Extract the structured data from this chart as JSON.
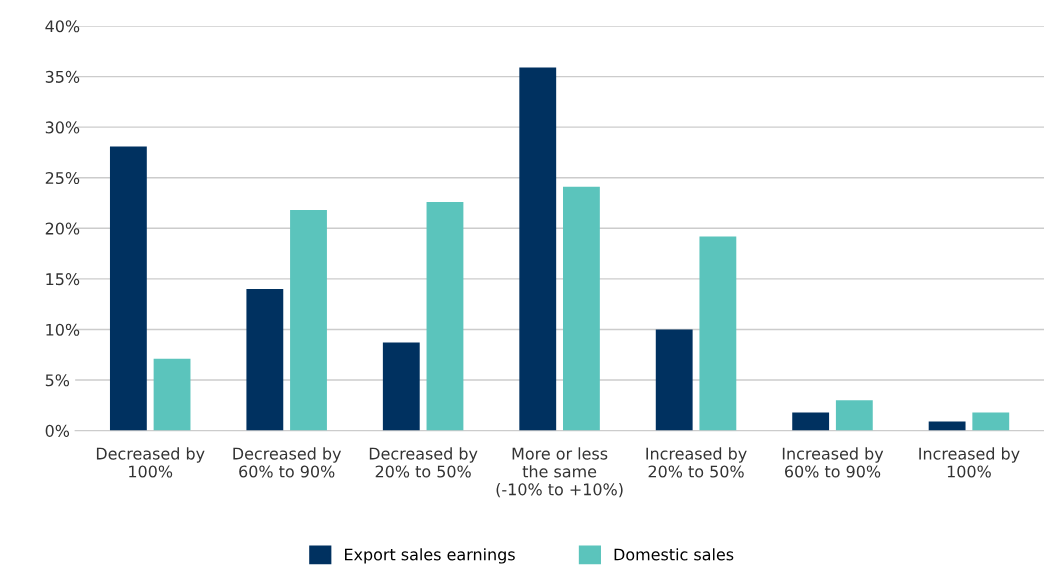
{
  "chart_data": {
    "type": "bar",
    "categories": [
      "Decreased by\n100%",
      "Decreased by\n60% to 90%",
      "Decreased by\n20% to 50%",
      "More or less\nthe same\n(-10% to +10%)",
      "Increased by\n20% to 50%",
      "Increased by\n60% to 90%",
      "Increased by\n100%"
    ],
    "series": [
      {
        "name": "Export sales earnings",
        "color": "#003160",
        "values": [
          28.1,
          14.0,
          8.7,
          35.9,
          10.0,
          1.8,
          0.9
        ]
      },
      {
        "name": "Domestic sales",
        "color": "#5bc4bc",
        "values": [
          7.1,
          21.8,
          22.6,
          24.1,
          19.2,
          3.0,
          1.8
        ]
      }
    ],
    "ylim": [
      0,
      40
    ],
    "yticks": [
      {
        "value": 0,
        "label": "0%"
      },
      {
        "value": 5,
        "label": "5%"
      },
      {
        "value": 10,
        "label": "10%"
      },
      {
        "value": 15,
        "label": "15%"
      },
      {
        "value": 20,
        "label": "20%"
      },
      {
        "value": 25,
        "label": "25%"
      },
      {
        "value": 30,
        "label": "30%"
      },
      {
        "value": 35,
        "label": "35%"
      },
      {
        "value": 40,
        "label": "40%"
      }
    ],
    "grid": "y",
    "legend": "bottom"
  }
}
